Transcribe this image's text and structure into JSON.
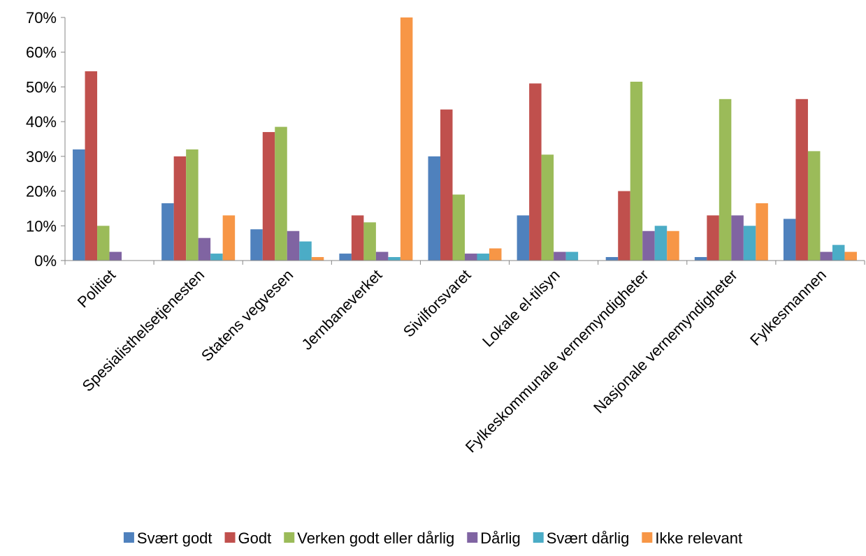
{
  "chart_data": {
    "type": "bar",
    "categories": [
      "Politiet",
      "Spesialisthelsetjenesten",
      "Statens vegvesen",
      "Jernbaneverket",
      "Sivilforsvaret",
      "Lokale el-tilsyn",
      "Fylkeskommunale vernemyndigheter",
      "Nasjonale vernemyndigheter",
      "Fylkesmannen"
    ],
    "series": [
      {
        "name": "Svært godt",
        "color": "#4F81BD",
        "values": [
          32,
          16.5,
          9,
          2,
          30,
          13,
          1,
          1,
          12
        ]
      },
      {
        "name": "Godt",
        "color": "#C0504D",
        "values": [
          54.5,
          30,
          37,
          13,
          43.5,
          51,
          20,
          13,
          46.5
        ]
      },
      {
        "name": "Verken godt eller dårlig",
        "color": "#9BBB59",
        "values": [
          10,
          32,
          38.5,
          11,
          19,
          30.5,
          51.5,
          46.5,
          31.5
        ]
      },
      {
        "name": "Dårlig",
        "color": "#8064A2",
        "values": [
          2.5,
          6.5,
          8.5,
          2.5,
          2,
          2.5,
          8.5,
          13,
          2.5
        ]
      },
      {
        "name": "Svært dårlig",
        "color": "#4BACC6",
        "values": [
          0,
          2,
          5.5,
          1,
          2,
          2.5,
          10,
          10,
          4.5
        ]
      },
      {
        "name": "Ikke relevant",
        "color": "#F79646",
        "values": [
          0,
          13,
          1,
          70,
          3.5,
          0,
          8.5,
          16.5,
          2.5
        ]
      }
    ],
    "yticks": [
      "0%",
      "10%",
      "20%",
      "30%",
      "40%",
      "50%",
      "60%",
      "70%"
    ],
    "ylim": [
      0,
      70
    ],
    "title": "",
    "xlabel": "",
    "ylabel": "",
    "grid": false,
    "legend_position": "bottom"
  }
}
